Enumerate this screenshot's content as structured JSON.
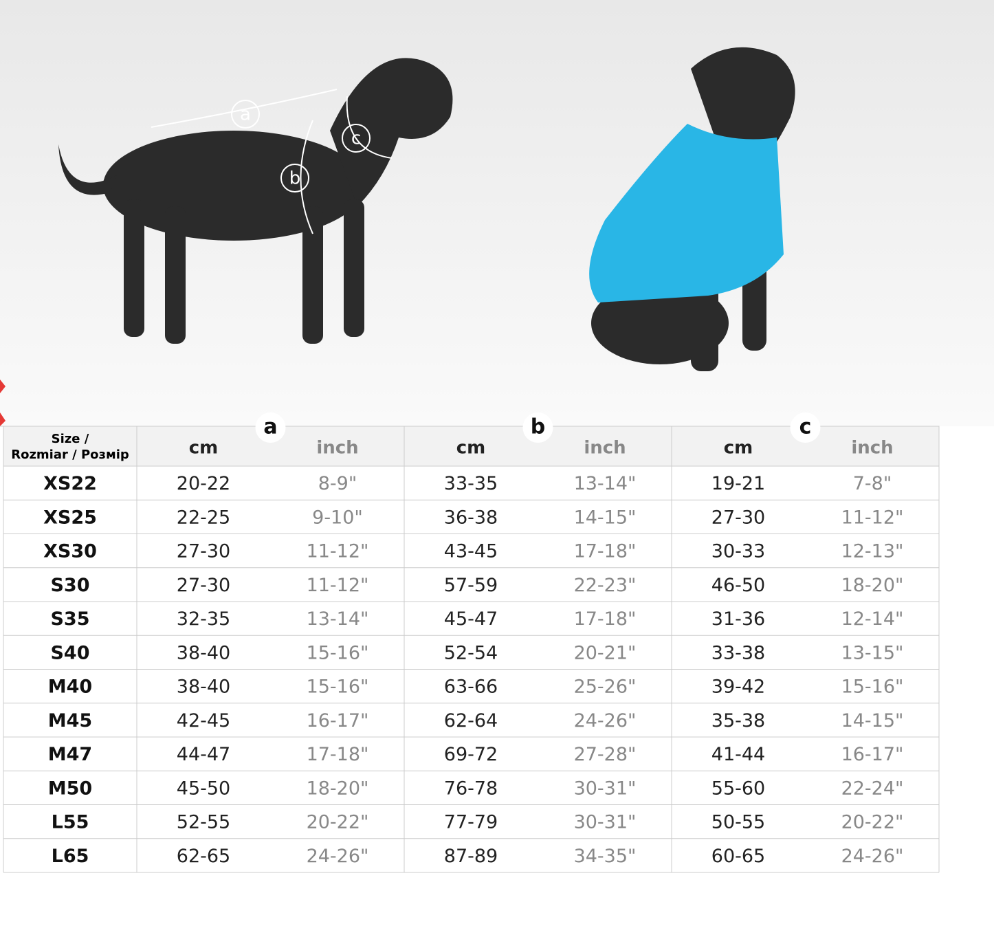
{
  "diagram": {
    "labels": [
      "a",
      "b",
      "c"
    ]
  },
  "table": {
    "header": {
      "size": [
        "Size /",
        "Rozmiar / Розмір"
      ]
    },
    "groups": [
      {
        "label": "a",
        "units": [
          "cm",
          "inch"
        ]
      },
      {
        "label": "b",
        "units": [
          "cm",
          "inch"
        ]
      },
      {
        "label": "c",
        "units": [
          "cm",
          "inch"
        ]
      }
    ],
    "rows": [
      [
        "XS22",
        "20-22",
        "8-9\"",
        "33-35",
        "13-14\"",
        "19-21",
        "7-8\""
      ],
      [
        "XS25",
        "22-25",
        "9-10\"",
        "36-38",
        "14-15\"",
        "27-30",
        "11-12\""
      ],
      [
        "XS30",
        "27-30",
        "11-12\"",
        "43-45",
        "17-18\"",
        "30-33",
        "12-13\""
      ],
      [
        "S30",
        "27-30",
        "11-12\"",
        "57-59",
        "22-23\"",
        "46-50",
        "18-20\""
      ],
      [
        "S35",
        "32-35",
        "13-14\"",
        "45-47",
        "17-18\"",
        "31-36",
        "12-14\""
      ],
      [
        "S40",
        "38-40",
        "15-16\"",
        "52-54",
        "20-21\"",
        "33-38",
        "13-15\""
      ],
      [
        "M40",
        "38-40",
        "15-16\"",
        "63-66",
        "25-26\"",
        "39-42",
        "15-16\""
      ],
      [
        "M45",
        "42-45",
        "16-17\"",
        "62-64",
        "24-26\"",
        "35-38",
        "14-15\""
      ],
      [
        "M47",
        "44-47",
        "17-18\"",
        "69-72",
        "27-28\"",
        "41-44",
        "16-17\""
      ],
      [
        "M50",
        "45-50",
        "18-20\"",
        "76-78",
        "30-31\"",
        "55-60",
        "22-24\""
      ],
      [
        "L55",
        "52-55",
        "20-22\"",
        "77-79",
        "30-31\"",
        "50-55",
        "20-22\""
      ],
      [
        "L65",
        "62-65",
        "24-26\"",
        "87-89",
        "34-35\"",
        "60-65",
        "24-26\""
      ]
    ]
  }
}
